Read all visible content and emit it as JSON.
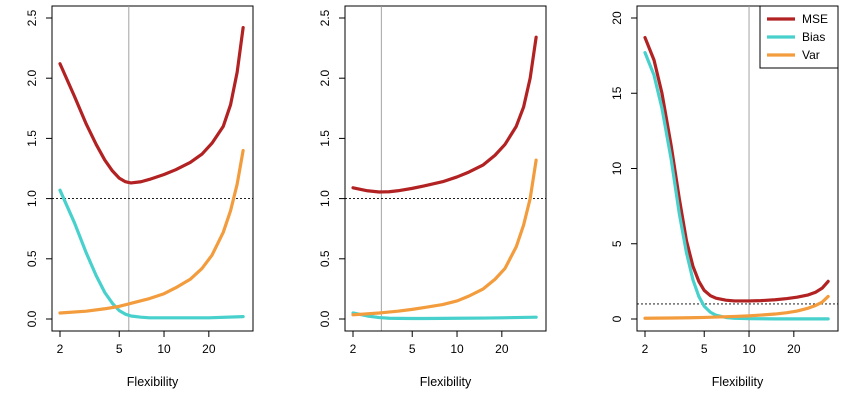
{
  "chart_data": [
    {
      "type": "line",
      "xlabel": "Flexibility",
      "ylabel": "",
      "x_scale": "log",
      "xlim": [
        2,
        35
      ],
      "ylim": [
        0,
        2.5
      ],
      "xticks": [
        "2",
        "5",
        "10",
        "20"
      ],
      "yticks": [
        "0.0",
        "0.5",
        "1.0",
        "1.5",
        "2.0",
        "2.5"
      ],
      "hline": 1.0,
      "vline": 5.8,
      "series": [
        {
          "name": "MSE",
          "color": "#b22222",
          "x": [
            2,
            2.5,
            3,
            3.5,
            4,
            4.5,
            5,
            5.5,
            6,
            7,
            8,
            10,
            12,
            15,
            18,
            21,
            25,
            28,
            31,
            34
          ],
          "y": [
            2.12,
            1.85,
            1.62,
            1.45,
            1.32,
            1.23,
            1.17,
            1.14,
            1.13,
            1.14,
            1.16,
            1.2,
            1.24,
            1.3,
            1.37,
            1.46,
            1.6,
            1.78,
            2.05,
            2.42
          ]
        },
        {
          "name": "Bias",
          "color": "#48d1cc",
          "x": [
            2,
            2.5,
            3,
            3.5,
            4,
            4.5,
            5,
            5.5,
            6,
            7,
            8,
            10,
            15,
            20,
            34
          ],
          "y": [
            1.07,
            0.8,
            0.55,
            0.36,
            0.22,
            0.13,
            0.07,
            0.04,
            0.025,
            0.015,
            0.01,
            0.01,
            0.01,
            0.01,
            0.02
          ]
        },
        {
          "name": "Var",
          "color": "#f39c3d",
          "x": [
            2,
            3,
            4,
            5,
            6,
            8,
            10,
            12,
            15,
            18,
            21,
            25,
            28,
            31,
            34
          ],
          "y": [
            0.05,
            0.065,
            0.085,
            0.105,
            0.13,
            0.17,
            0.21,
            0.26,
            0.33,
            0.42,
            0.53,
            0.72,
            0.9,
            1.12,
            1.4
          ]
        }
      ]
    },
    {
      "type": "line",
      "xlabel": "Flexibility",
      "ylabel": "",
      "x_scale": "log",
      "xlim": [
        2,
        35
      ],
      "ylim": [
        0,
        2.5
      ],
      "xticks": [
        "2",
        "5",
        "10",
        "20"
      ],
      "yticks": [
        "0.0",
        "0.5",
        "1.0",
        "1.5",
        "2.0",
        "2.5"
      ],
      "hline": 1.0,
      "vline": 3.1,
      "series": [
        {
          "name": "MSE",
          "color": "#b22222",
          "x": [
            2,
            2.5,
            3,
            3.5,
            4,
            5,
            6,
            8,
            10,
            12,
            15,
            18,
            21,
            25,
            28,
            31,
            34
          ],
          "y": [
            1.09,
            1.065,
            1.055,
            1.057,
            1.065,
            1.085,
            1.105,
            1.14,
            1.18,
            1.22,
            1.28,
            1.36,
            1.45,
            1.6,
            1.76,
            2.0,
            2.34
          ]
        },
        {
          "name": "Bias",
          "color": "#48d1cc",
          "x": [
            2,
            2.5,
            3,
            3.5,
            4,
            5,
            6,
            8,
            10,
            15,
            20,
            34
          ],
          "y": [
            0.05,
            0.025,
            0.012,
            0.006,
            0.005,
            0.004,
            0.004,
            0.005,
            0.006,
            0.008,
            0.01,
            0.015
          ]
        },
        {
          "name": "Var",
          "color": "#f39c3d",
          "x": [
            2,
            3,
            4,
            5,
            6,
            8,
            10,
            12,
            15,
            18,
            21,
            25,
            28,
            31,
            34
          ],
          "y": [
            0.035,
            0.05,
            0.065,
            0.08,
            0.095,
            0.12,
            0.15,
            0.19,
            0.25,
            0.33,
            0.42,
            0.6,
            0.78,
            1.0,
            1.32
          ]
        }
      ]
    },
    {
      "type": "line",
      "xlabel": "Flexibility",
      "ylabel": "",
      "x_scale": "log",
      "xlim": [
        2,
        35
      ],
      "ylim": [
        0,
        20
      ],
      "xticks": [
        "2",
        "5",
        "10",
        "20"
      ],
      "yticks": [
        "0",
        "5",
        "10",
        "15",
        "20"
      ],
      "hline": 1.0,
      "vline": 10,
      "legend": {
        "position": "top-right",
        "entries": [
          "MSE",
          "Bias",
          "Var"
        ]
      },
      "series": [
        {
          "name": "MSE",
          "color": "#b22222",
          "x": [
            2,
            2.3,
            2.6,
            3,
            3.4,
            3.8,
            4.2,
            4.6,
            5,
            5.5,
            6,
            7,
            8,
            10,
            12,
            15,
            18,
            21,
            25,
            28,
            31,
            34
          ],
          "y": [
            18.7,
            17.2,
            15.0,
            11.5,
            8.0,
            5.2,
            3.5,
            2.5,
            1.9,
            1.55,
            1.38,
            1.25,
            1.2,
            1.2,
            1.22,
            1.28,
            1.36,
            1.45,
            1.6,
            1.78,
            2.05,
            2.5
          ]
        },
        {
          "name": "Bias",
          "color": "#48d1cc",
          "x": [
            2,
            2.3,
            2.6,
            3,
            3.4,
            3.8,
            4.2,
            4.6,
            5,
            5.5,
            6,
            7,
            8,
            10,
            15,
            20,
            34
          ],
          "y": [
            17.7,
            16.2,
            14.0,
            10.6,
            7.0,
            4.4,
            2.6,
            1.5,
            0.85,
            0.45,
            0.25,
            0.1,
            0.05,
            0.02,
            0.01,
            0.01,
            0.01
          ]
        },
        {
          "name": "Var",
          "color": "#f39c3d",
          "x": [
            2,
            3,
            4,
            5,
            6,
            8,
            10,
            12,
            15,
            18,
            21,
            25,
            28,
            31,
            34
          ],
          "y": [
            0.05,
            0.065,
            0.085,
            0.105,
            0.13,
            0.17,
            0.21,
            0.26,
            0.33,
            0.42,
            0.53,
            0.72,
            0.9,
            1.12,
            1.5
          ]
        }
      ]
    }
  ]
}
